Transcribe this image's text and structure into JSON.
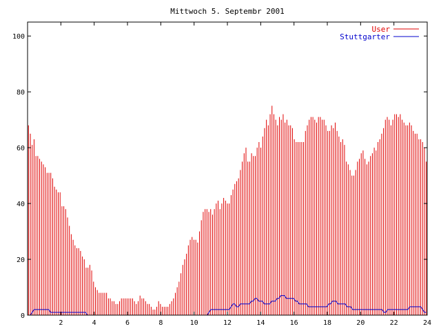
{
  "chart_data": {
    "type": "bar",
    "title": "Mittwoch 5. Septembr 2001",
    "xlabel": "",
    "ylabel": "",
    "xlim": [
      0,
      24
    ],
    "ylim": [
      0,
      105
    ],
    "xticks": [
      2,
      4,
      6,
      8,
      10,
      12,
      14,
      16,
      18,
      20,
      22,
      24
    ],
    "yticks": [
      0,
      20,
      40,
      60,
      80,
      100
    ],
    "legend_position": "top-right",
    "grid": false,
    "sample_interval_hours": 0.0833,
    "series": [
      {
        "name": "User",
        "style": "impulses",
        "color": "#e00000",
        "values": [
          68,
          65,
          61,
          63,
          57,
          57,
          56,
          55,
          54,
          53,
          51,
          51,
          51,
          49,
          46,
          45,
          44,
          44,
          39,
          39,
          38,
          35,
          32,
          29,
          27,
          25,
          24,
          24,
          23,
          21,
          20,
          17,
          17,
          18,
          16,
          12,
          10,
          9,
          8,
          8,
          8,
          8,
          8,
          6,
          6,
          5,
          5,
          4,
          4,
          5,
          6,
          6,
          6,
          6,
          6,
          6,
          6,
          5,
          4,
          5,
          7,
          6,
          6,
          5,
          4,
          4,
          3,
          2,
          2,
          3,
          5,
          4,
          3,
          3,
          3,
          3,
          4,
          5,
          6,
          8,
          10,
          12,
          15,
          18,
          20,
          22,
          25,
          27,
          28,
          27,
          27,
          26,
          30,
          34,
          37,
          38,
          38,
          37,
          38,
          36,
          38,
          40,
          41,
          38,
          40,
          42,
          41,
          40,
          40,
          43,
          45,
          47,
          48,
          49,
          52,
          55,
          58,
          60,
          55,
          55,
          58,
          57,
          57,
          60,
          62,
          60,
          64,
          67,
          70,
          68,
          72,
          75,
          72,
          70,
          68,
          71,
          70,
          72,
          69,
          70,
          68,
          68,
          67,
          63,
          62,
          62,
          62,
          62,
          62,
          66,
          68,
          70,
          71,
          71,
          70,
          69,
          71,
          71,
          70,
          70,
          68,
          66,
          66,
          68,
          67,
          69,
          66,
          64,
          62,
          63,
          61,
          55,
          54,
          52,
          50,
          50,
          52,
          55,
          56,
          58,
          59,
          56,
          54,
          55,
          57,
          58,
          60,
          59,
          62,
          63,
          65,
          67,
          70,
          71,
          70,
          68,
          70,
          72,
          72,
          71,
          72,
          70,
          69,
          68,
          68,
          69,
          68,
          66,
          65,
          65,
          63,
          63,
          62,
          60,
          55
        ]
      },
      {
        "name": "Stuttgarter",
        "style": "line",
        "color": "#0000cc",
        "values": [
          0,
          0,
          1,
          2,
          2,
          2,
          2,
          2,
          2,
          2,
          2,
          2,
          1,
          1,
          1,
          1,
          1,
          1,
          1,
          1,
          1,
          1,
          1,
          1,
          1,
          1,
          1,
          1,
          1,
          1,
          1,
          1,
          0,
          0,
          0,
          0,
          0,
          0,
          0,
          0,
          0,
          0,
          0,
          0,
          0,
          0,
          0,
          0,
          0,
          0,
          0,
          0,
          0,
          0,
          0,
          0,
          0,
          0,
          0,
          0,
          0,
          0,
          0,
          0,
          0,
          0,
          0,
          0,
          0,
          0,
          0,
          0,
          0,
          0,
          0,
          0,
          0,
          0,
          0,
          0,
          0,
          0,
          0,
          0,
          0,
          0,
          0,
          0,
          0,
          0,
          0,
          0,
          0,
          0,
          0,
          0,
          0,
          0,
          1,
          2,
          2,
          2,
          2,
          2,
          2,
          2,
          2,
          2,
          2,
          2,
          3,
          4,
          4,
          3,
          3,
          4,
          4,
          4,
          4,
          4,
          4,
          5,
          5,
          6,
          6,
          5,
          5,
          5,
          4,
          4,
          4,
          4,
          5,
          5,
          5,
          6,
          6,
          7,
          7,
          7,
          6,
          6,
          6,
          6,
          6,
          5,
          5,
          4,
          4,
          4,
          4,
          4,
          3,
          3,
          3,
          3,
          3,
          3,
          3,
          3,
          3,
          3,
          3,
          4,
          4,
          5,
          5,
          5,
          4,
          4,
          4,
          4,
          4,
          3,
          3,
          3,
          2,
          2,
          2,
          2,
          2,
          2,
          2,
          2,
          2,
          2,
          2,
          2,
          2,
          2,
          2,
          2,
          2,
          1,
          1,
          2,
          2,
          2,
          2,
          2,
          2,
          2,
          2,
          2,
          2,
          2,
          2,
          3,
          3,
          3,
          3,
          3,
          3,
          3,
          2,
          1,
          1
        ]
      }
    ]
  }
}
